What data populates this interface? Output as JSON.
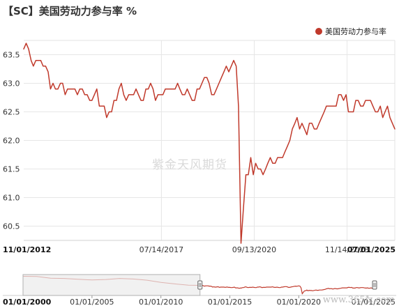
{
  "header": {
    "title": "【SC】美国劳动力参与率 %"
  },
  "legend": {
    "label": "美国劳动力参与率",
    "color": "#c0392b"
  },
  "watermark": "紫金天风期货",
  "site_mark": "www.365jz.com",
  "chart_data": {
    "type": "line",
    "title": "【SC】美国劳动力参与率 %",
    "series": [
      {
        "name": "美国劳动力参与率",
        "color": "#c0392b",
        "points": [
          [
            "2012-11-01",
            63.6
          ],
          [
            "2012-12-01",
            63.7
          ],
          [
            "2013-01-01",
            63.6
          ],
          [
            "2013-02-01",
            63.4
          ],
          [
            "2013-03-01",
            63.3
          ],
          [
            "2013-04-01",
            63.4
          ],
          [
            "2013-05-01",
            63.4
          ],
          [
            "2013-06-01",
            63.4
          ],
          [
            "2013-07-01",
            63.3
          ],
          [
            "2013-08-01",
            63.3
          ],
          [
            "2013-09-01",
            63.2
          ],
          [
            "2013-10-01",
            62.9
          ],
          [
            "2013-11-01",
            63.0
          ],
          [
            "2013-12-01",
            62.9
          ],
          [
            "2014-01-01",
            62.9
          ],
          [
            "2014-02-01",
            63.0
          ],
          [
            "2014-03-01",
            63.0
          ],
          [
            "2014-04-01",
            62.8
          ],
          [
            "2014-05-01",
            62.9
          ],
          [
            "2014-06-01",
            62.9
          ],
          [
            "2014-07-01",
            62.9
          ],
          [
            "2014-08-01",
            62.9
          ],
          [
            "2014-09-01",
            62.8
          ],
          [
            "2014-10-01",
            62.9
          ],
          [
            "2014-11-01",
            62.9
          ],
          [
            "2014-12-01",
            62.8
          ],
          [
            "2015-01-01",
            62.8
          ],
          [
            "2015-02-01",
            62.7
          ],
          [
            "2015-03-01",
            62.7
          ],
          [
            "2015-04-01",
            62.8
          ],
          [
            "2015-05-01",
            62.9
          ],
          [
            "2015-06-01",
            62.6
          ],
          [
            "2015-07-01",
            62.6
          ],
          [
            "2015-08-01",
            62.6
          ],
          [
            "2015-09-01",
            62.4
          ],
          [
            "2015-10-01",
            62.5
          ],
          [
            "2015-11-01",
            62.5
          ],
          [
            "2015-12-01",
            62.7
          ],
          [
            "2016-01-01",
            62.7
          ],
          [
            "2016-02-01",
            62.9
          ],
          [
            "2016-03-01",
            63.0
          ],
          [
            "2016-04-01",
            62.8
          ],
          [
            "2016-05-01",
            62.7
          ],
          [
            "2016-06-01",
            62.8
          ],
          [
            "2016-07-01",
            62.8
          ],
          [
            "2016-08-01",
            62.8
          ],
          [
            "2016-09-01",
            62.9
          ],
          [
            "2016-10-01",
            62.8
          ],
          [
            "2016-11-01",
            62.7
          ],
          [
            "2016-12-01",
            62.7
          ],
          [
            "2017-01-01",
            62.9
          ],
          [
            "2017-02-01",
            62.9
          ],
          [
            "2017-03-01",
            63.0
          ],
          [
            "2017-04-01",
            62.9
          ],
          [
            "2017-05-01",
            62.7
          ],
          [
            "2017-06-01",
            62.8
          ],
          [
            "2017-07-01",
            62.8
          ],
          [
            "2017-08-01",
            62.8
          ],
          [
            "2017-09-01",
            62.9
          ],
          [
            "2017-10-01",
            62.9
          ],
          [
            "2017-11-01",
            62.9
          ],
          [
            "2017-12-01",
            62.9
          ],
          [
            "2018-01-01",
            62.9
          ],
          [
            "2018-02-01",
            63.0
          ],
          [
            "2018-03-01",
            62.9
          ],
          [
            "2018-04-01",
            62.8
          ],
          [
            "2018-05-01",
            62.8
          ],
          [
            "2018-06-01",
            62.9
          ],
          [
            "2018-07-01",
            62.8
          ],
          [
            "2018-08-01",
            62.7
          ],
          [
            "2018-09-01",
            62.7
          ],
          [
            "2018-10-01",
            62.9
          ],
          [
            "2018-11-01",
            62.9
          ],
          [
            "2018-12-01",
            63.0
          ],
          [
            "2019-01-01",
            63.1
          ],
          [
            "2019-02-01",
            63.1
          ],
          [
            "2019-03-01",
            63.0
          ],
          [
            "2019-04-01",
            62.8
          ],
          [
            "2019-05-01",
            62.8
          ],
          [
            "2019-06-01",
            62.9
          ],
          [
            "2019-07-01",
            63.0
          ],
          [
            "2019-08-01",
            63.1
          ],
          [
            "2019-09-01",
            63.2
          ],
          [
            "2019-10-01",
            63.3
          ],
          [
            "2019-11-01",
            63.2
          ],
          [
            "2019-12-01",
            63.3
          ],
          [
            "2020-01-01",
            63.4
          ],
          [
            "2020-02-01",
            63.3
          ],
          [
            "2020-03-01",
            62.6
          ],
          [
            "2020-04-01",
            60.2
          ],
          [
            "2020-05-01",
            60.8
          ],
          [
            "2020-06-01",
            61.4
          ],
          [
            "2020-07-01",
            61.4
          ],
          [
            "2020-08-01",
            61.7
          ],
          [
            "2020-09-01",
            61.4
          ],
          [
            "2020-10-01",
            61.6
          ],
          [
            "2020-11-01",
            61.5
          ],
          [
            "2020-12-01",
            61.5
          ],
          [
            "2021-01-01",
            61.4
          ],
          [
            "2021-02-01",
            61.5
          ],
          [
            "2021-03-01",
            61.6
          ],
          [
            "2021-04-01",
            61.7
          ],
          [
            "2021-05-01",
            61.6
          ],
          [
            "2021-06-01",
            61.6
          ],
          [
            "2021-07-01",
            61.7
          ],
          [
            "2021-08-01",
            61.7
          ],
          [
            "2021-09-01",
            61.7
          ],
          [
            "2021-10-01",
            61.8
          ],
          [
            "2021-11-01",
            61.9
          ],
          [
            "2021-12-01",
            62.0
          ],
          [
            "2022-01-01",
            62.2
          ],
          [
            "2022-02-01",
            62.3
          ],
          [
            "2022-03-01",
            62.4
          ],
          [
            "2022-04-01",
            62.2
          ],
          [
            "2022-05-01",
            62.3
          ],
          [
            "2022-06-01",
            62.2
          ],
          [
            "2022-07-01",
            62.1
          ],
          [
            "2022-08-01",
            62.3
          ],
          [
            "2022-09-01",
            62.3
          ],
          [
            "2022-10-01",
            62.2
          ],
          [
            "2022-11-01",
            62.2
          ],
          [
            "2022-12-01",
            62.3
          ],
          [
            "2023-01-01",
            62.4
          ],
          [
            "2023-02-01",
            62.5
          ],
          [
            "2023-03-01",
            62.6
          ],
          [
            "2023-04-01",
            62.6
          ],
          [
            "2023-05-01",
            62.6
          ],
          [
            "2023-06-01",
            62.6
          ],
          [
            "2023-07-01",
            62.6
          ],
          [
            "2023-08-01",
            62.8
          ],
          [
            "2023-09-01",
            62.8
          ],
          [
            "2023-10-01",
            62.7
          ],
          [
            "2023-11-01",
            62.8
          ],
          [
            "2023-12-01",
            62.5
          ],
          [
            "2024-01-01",
            62.5
          ],
          [
            "2024-02-01",
            62.5
          ],
          [
            "2024-03-01",
            62.7
          ],
          [
            "2024-04-01",
            62.7
          ],
          [
            "2024-05-01",
            62.6
          ],
          [
            "2024-06-01",
            62.6
          ],
          [
            "2024-07-01",
            62.7
          ],
          [
            "2024-08-01",
            62.7
          ],
          [
            "2024-09-01",
            62.7
          ],
          [
            "2024-10-01",
            62.6
          ],
          [
            "2024-11-01",
            62.5
          ],
          [
            "2024-12-01",
            62.5
          ],
          [
            "2025-01-01",
            62.6
          ],
          [
            "2025-02-01",
            62.4
          ],
          [
            "2025-03-01",
            62.5
          ],
          [
            "2025-04-01",
            62.6
          ],
          [
            "2025-05-01",
            62.4
          ],
          [
            "2025-06-01",
            62.3
          ],
          [
            "2025-07-01",
            62.2
          ]
        ]
      }
    ],
    "xlabel": "",
    "ylabel": "",
    "xlim": [
      "2012-11-01",
      "2025-07-01"
    ],
    "ylim": [
      60.25,
      63.75
    ],
    "yticks": [
      60.5,
      61.0,
      61.5,
      62.0,
      62.5,
      63.0,
      63.5
    ],
    "ytick_labels": [
      "60.5",
      "61.0",
      "61.5",
      "62.0",
      "62.5",
      "63.0",
      "63.5"
    ],
    "xticks": [
      "2012-11-01",
      "2017-07-14",
      "2020-09-13",
      "2023-11-14",
      "2025-07-01"
    ],
    "xtick_labels": [
      "11/01/2012",
      "07/14/2017",
      "09/13/2020",
      "11/14/2023",
      "07/01/2025"
    ],
    "bold_xtick_labels": [
      "11/01/2012",
      "07/01/2025"
    ],
    "grid": true,
    "legend_position": "top-right",
    "navigator": {
      "xlim": [
        "2000-01-01",
        "2025-07-01"
      ],
      "xticks": [
        "2000-01-01",
        "2005-01-01",
        "2010-01-01",
        "2015-01-01",
        "2020-01-01",
        "2025-01-01"
      ],
      "xtick_labels": [
        "01/01/2000",
        "01/01/2005",
        "01/01/2010",
        "01/01/2015",
        "01/01/2020",
        "01/01/2025"
      ],
      "bold_xtick_labels": [
        "01/01/2000"
      ],
      "history_points": [
        [
          "2000-01-01",
          67.3
        ],
        [
          "2001-01-01",
          67.2
        ],
        [
          "2002-01-01",
          66.5
        ],
        [
          "2003-01-01",
          66.4
        ],
        [
          "2004-01-01",
          66.1
        ],
        [
          "2005-01-01",
          65.8
        ],
        [
          "2006-01-01",
          66.0
        ],
        [
          "2007-01-01",
          66.4
        ],
        [
          "2008-01-01",
          66.2
        ],
        [
          "2009-01-01",
          65.7
        ],
        [
          "2010-01-01",
          64.8
        ],
        [
          "2011-01-01",
          64.2
        ],
        [
          "2012-01-01",
          63.7
        ],
        [
          "2012-11-01",
          63.6
        ]
      ],
      "selected_range": [
        "2012-11-01",
        "2025-07-01"
      ]
    }
  }
}
